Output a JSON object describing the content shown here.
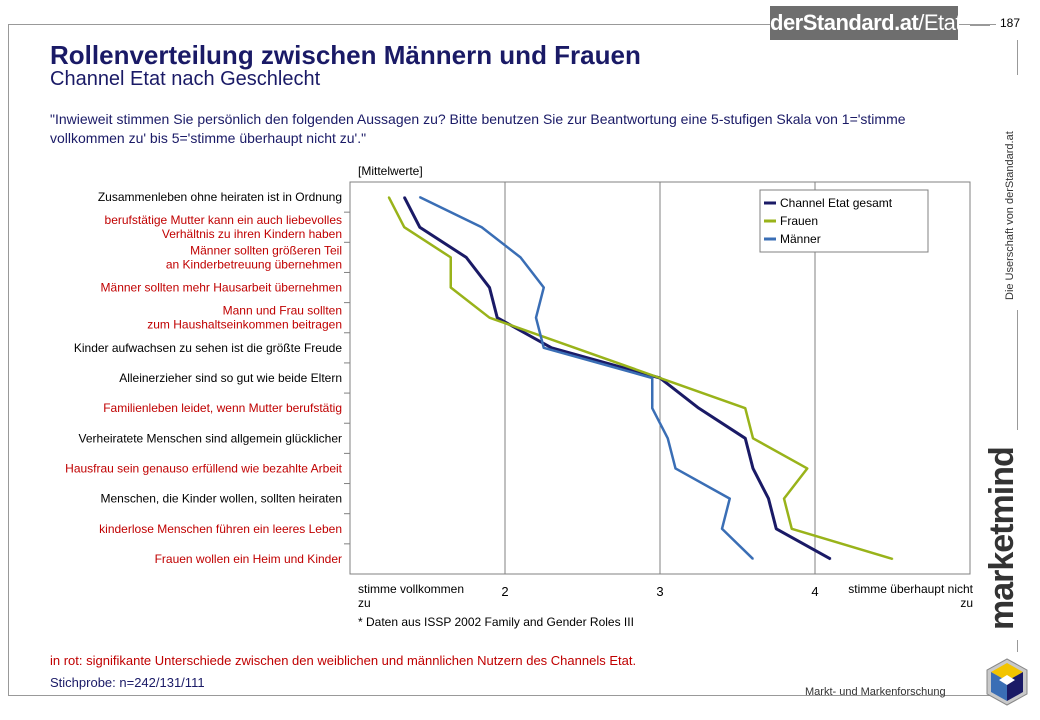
{
  "header": {
    "brand_main": "derStandard.at",
    "brand_sub": "/Etat",
    "page_number": "187",
    "side_copyright": "Die Userschaft von derStandard.at",
    "vertical_logo": "marketmind",
    "footer_brand": "Markt- und Markenforschung"
  },
  "title": "Rollenverteilung zwischen Männern und Frauen",
  "subtitle": "Channel Etat nach Geschlecht",
  "question": "\"Inwieweit stimmen Sie persönlich den folgenden Aussagen zu? Bitte benutzen Sie zur Beantwortung eine 5-stufigen Skala von 1='stimme vollkommen zu' bis 5='stimme überhaupt nicht zu'.\"",
  "notes": {
    "red_note": "in rot: signifikante Unterschiede zwischen den weiblichen und männlichen Nutzern des Channels Etat.",
    "sample": "Stichprobe: n=242/131/111"
  },
  "colors": {
    "title": "#1a1a66",
    "significant": "#c00000",
    "gesamt": "#1a1a66",
    "frauen": "#99b31a",
    "maenner": "#3a6eb5"
  },
  "chart_data": {
    "type": "line",
    "orientation": "horizontal",
    "unit_label": "[Mittelwerte]",
    "x_label_left": "stimme vollkommen zu",
    "x_label_right": "stimme überhaupt nicht zu",
    "xlim": [
      1,
      5
    ],
    "x_ticks": [
      "2",
      "3",
      "4"
    ],
    "grid": true,
    "legend_position": "top-right",
    "footnote": "* Daten aus ISSP 2002 Family and Gender Roles III",
    "categories": [
      {
        "label": "Zusammenleben ohne heiraten ist in Ordnung",
        "significant": false
      },
      {
        "label": "berufstätige Mutter kann ein auch liebevolles Verhältnis zu ihren Kindern haben",
        "significant": true
      },
      {
        "label": "Männer sollten größeren Teil an Kinderbetreuung übernehmen",
        "significant": true
      },
      {
        "label": "Männer sollten mehr Hausarbeit übernehmen",
        "significant": true
      },
      {
        "label": "Mann und Frau sollten zum Haushaltseinkommen beitragen",
        "significant": true
      },
      {
        "label": "Kinder aufwachsen zu sehen ist die größte Freude",
        "significant": false
      },
      {
        "label": "Alleinerzieher sind so gut wie beide Eltern",
        "significant": false
      },
      {
        "label": "Familienleben leidet, wenn Mutter berufstätig",
        "significant": true
      },
      {
        "label": "Verheiratete Menschen sind allgemein glücklicher",
        "significant": false
      },
      {
        "label": "Hausfrau sein genauso erfüllend wie bezahlte Arbeit",
        "significant": true
      },
      {
        "label": "Menschen, die Kinder wollen, sollten heiraten",
        "significant": false
      },
      {
        "label": "kinderlose Menschen führen ein leeres Leben",
        "significant": true
      },
      {
        "label": "Frauen wollen ein Heim und Kinder",
        "significant": true
      }
    ],
    "category_lines": [
      [
        "Zusammenleben ohne heiraten ist in Ordnung"
      ],
      [
        "berufstätige Mutter kann ein auch liebevolles",
        "Verhältnis zu ihren Kindern haben"
      ],
      [
        "Männer sollten größeren Teil",
        "an Kinderbetreuung übernehmen"
      ],
      [
        "Männer sollten mehr Hausarbeit übernehmen"
      ],
      [
        "Mann und Frau sollten",
        "zum Haushaltseinkommen beitragen"
      ],
      [
        "Kinder aufwachsen zu sehen ist die größte Freude"
      ],
      [
        "Alleinerzieher sind so gut wie beide Eltern"
      ],
      [
        "Familienleben leidet, wenn Mutter berufstätig"
      ],
      [
        "Verheiratete Menschen sind allgemein glücklicher"
      ],
      [
        "Hausfrau sein genauso erfüllend wie bezahlte Arbeit"
      ],
      [
        "Menschen, die Kinder wollen, sollten heiraten"
      ],
      [
        "kinderlose Menschen führen ein leeres Leben"
      ],
      [
        "Frauen wollen ein Heim und Kinder"
      ]
    ],
    "series": [
      {
        "name": "Channel Etat gesamt",
        "color": "#1a1a66",
        "values": [
          1.35,
          1.45,
          1.75,
          1.9,
          1.95,
          2.3,
          3.0,
          3.25,
          3.55,
          3.6,
          3.7,
          3.75,
          4.1
        ]
      },
      {
        "name": "Frauen",
        "color": "#99b31a",
        "values": [
          1.25,
          1.35,
          1.65,
          1.65,
          1.9,
          2.45,
          3.0,
          3.55,
          3.6,
          3.95,
          3.8,
          3.85,
          4.5
        ]
      },
      {
        "name": "Männer",
        "color": "#3a6eb5",
        "values": [
          1.45,
          1.85,
          2.1,
          2.25,
          2.2,
          2.25,
          2.95,
          2.95,
          3.05,
          3.1,
          3.45,
          3.4,
          3.6
        ]
      }
    ]
  }
}
